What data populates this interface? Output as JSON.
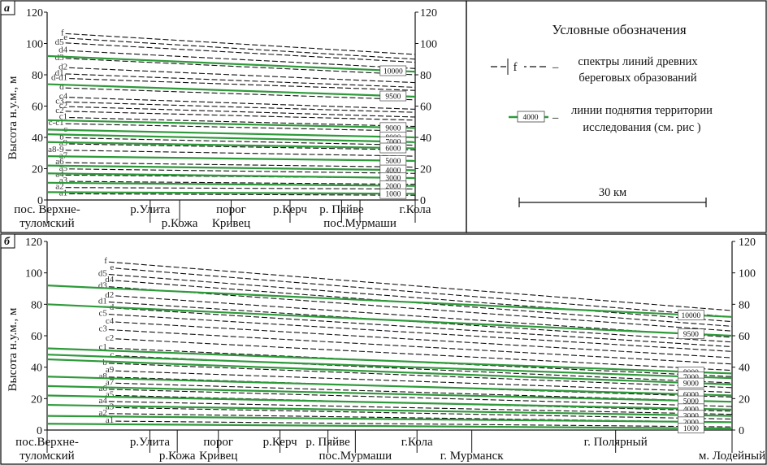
{
  "chart_data": [
    {
      "panel": "a",
      "type": "line",
      "ylabel": "Высота н.у.м., м",
      "ylim": [
        0,
        120
      ],
      "yticks": [
        0,
        20,
        40,
        60,
        80,
        100,
        120
      ],
      "locations": [
        {
          "l1": "пос. Верхне-",
          "l2": "туломский",
          "x": 0
        },
        {
          "l1": "р.Улита",
          "l2": "",
          "x": 28
        },
        {
          "l1": "",
          "l2": "р.Кожа",
          "x": 36
        },
        {
          "l1": "порог",
          "l2": "Кривец",
          "x": 50
        },
        {
          "l1": "р.Керч",
          "l2": "",
          "x": 66
        },
        {
          "l1": "р. Пяйве",
          "l2": "",
          "x": 80
        },
        {
          "l1": "",
          "l2": "пос.Мурмаши",
          "x": 85
        },
        {
          "l1": "г.Кола",
          "l2": "",
          "x": 100
        }
      ],
      "shoreline_spectra": [
        {
          "name": "f",
          "y0": 107,
          "y1": 93
        },
        {
          "name": "e",
          "y0": 104,
          "y1": 90
        },
        {
          "name": "d5",
          "y0": 101,
          "y1": 88
        },
        {
          "name": "d4",
          "y0": 96,
          "y1": 84
        },
        {
          "name": "d3",
          "y0": 91,
          "y1": 80
        },
        {
          "name": "d2",
          "y0": 85,
          "y1": 75
        },
        {
          "name": "d1",
          "y0": 81,
          "y1": 72
        },
        {
          "name": "d-d1",
          "y0": 78,
          "y1": 70
        },
        {
          "name": "d",
          "y0": 72,
          "y1": 64
        },
        {
          "name": "c4",
          "y0": 66,
          "y1": 58
        },
        {
          "name": "c3",
          "y0": 63,
          "y1": 56
        },
        {
          "name": "c2",
          "y0": 60,
          "y1": 53
        },
        {
          "name": "c2",
          "y0": 57,
          "y1": 51
        },
        {
          "name": "c1",
          "y0": 53,
          "y1": 47
        },
        {
          "name": "c-c1",
          "y0": 49,
          "y1": 44
        },
        {
          "name": "c",
          "y0": 45,
          "y1": 40
        },
        {
          "name": "b",
          "y0": 40,
          "y1": 35
        },
        {
          "name": "a9",
          "y0": 36,
          "y1": 32
        },
        {
          "name": "a8-9",
          "y0": 32,
          "y1": 28
        },
        {
          "name": "a7",
          "y0": 28,
          "y1": 25
        },
        {
          "name": "a6",
          "y0": 24,
          "y1": 21
        },
        {
          "name": "a5",
          "y0": 20,
          "y1": 17
        },
        {
          "name": "a4",
          "y0": 16,
          "y1": 14
        },
        {
          "name": "a3",
          "y0": 12,
          "y1": 10
        },
        {
          "name": "a2",
          "y0": 8,
          "y1": 7
        },
        {
          "name": "a1",
          "y0": 4,
          "y1": 3
        }
      ],
      "uplift_isolines": [
        {
          "name": "10000",
          "y0": 92,
          "y1": 82
        },
        {
          "name": "9500",
          "y0": 74,
          "y1": 66
        },
        {
          "name": "9000",
          "y0": 51,
          "y1": 46
        },
        {
          "name": "8000",
          "y0": 45,
          "y1": 40
        },
        {
          "name": "7000",
          "y0": 42,
          "y1": 37
        },
        {
          "name": "6000",
          "y0": 37,
          "y1": 33
        },
        {
          "name": "5000",
          "y0": 28,
          "y1": 25
        },
        {
          "name": "4000",
          "y0": 22,
          "y1": 19
        },
        {
          "name": "3000",
          "y0": 17,
          "y1": 14
        },
        {
          "name": "2000",
          "y0": 11,
          "y1": 9
        },
        {
          "name": "1000",
          "y0": 5,
          "y1": 4
        }
      ]
    },
    {
      "panel": "б",
      "type": "line",
      "ylabel": "Высота н.у.м., м",
      "ylim": [
        0,
        120
      ],
      "yticks": [
        0,
        20,
        40,
        60,
        80,
        100,
        120
      ],
      "locations": [
        {
          "l1": "пос.Верхне-",
          "l2": "туломский",
          "x": 0
        },
        {
          "l1": "р.Улита",
          "l2": "",
          "x": 15
        },
        {
          "l1": "",
          "l2": "р.Кожа",
          "x": 19
        },
        {
          "l1": "порог",
          "l2": "Кривец",
          "x": 25
        },
        {
          "l1": "р.Керч",
          "l2": "",
          "x": 34
        },
        {
          "l1": "р. Пяйве",
          "l2": "",
          "x": 41
        },
        {
          "l1": "",
          "l2": "пос.Мурмаши",
          "x": 45
        },
        {
          "l1": "г.Кола",
          "l2": "",
          "x": 54
        },
        {
          "l1": "",
          "l2": "г. Мурманск",
          "x": 62
        },
        {
          "l1": "г. Полярный",
          "l2": "",
          "x": 83
        },
        {
          "l1": "",
          "l2": "м. Лодейный",
          "x": 100
        }
      ],
      "shoreline_spectra": [
        {
          "name": "f",
          "y0": 110,
          "y1": 76
        },
        {
          "name": "e",
          "y0": 106,
          "y1": 72
        },
        {
          "name": "d5",
          "y0": 102,
          "y1": 69
        },
        {
          "name": "d4",
          "y0": 98,
          "y1": 66
        },
        {
          "name": "d3",
          "y0": 94,
          "y1": 63
        },
        {
          "name": "d2",
          "y0": 88,
          "y1": 59
        },
        {
          "name": "d1",
          "y0": 84,
          "y1": 56
        },
        {
          "name": "d",
          "y0": 80,
          "y1": 53
        },
        {
          "name": "c5",
          "y0": 76,
          "y1": 50
        },
        {
          "name": "c4",
          "y0": 71,
          "y1": 46
        },
        {
          "name": "c3",
          "y0": 66,
          "y1": 42
        },
        {
          "name": "c2",
          "y0": 60,
          "y1": 38
        },
        {
          "name": "c1",
          "y0": 54,
          "y1": 34
        },
        {
          "name": "c",
          "y0": 49,
          "y1": 30
        },
        {
          "name": "b",
          "y0": 44,
          "y1": 27
        },
        {
          "name": "a9",
          "y0": 39,
          "y1": 24
        },
        {
          "name": "a8",
          "y0": 35,
          "y1": 21
        },
        {
          "name": "a7",
          "y0": 31,
          "y1": 18
        },
        {
          "name": "a6",
          "y0": 27,
          "y1": 15
        },
        {
          "name": "a5",
          "y0": 23,
          "y1": 12
        },
        {
          "name": "a4",
          "y0": 19,
          "y1": 10
        },
        {
          "name": "a3",
          "y0": 15,
          "y1": 7
        },
        {
          "name": "a2",
          "y0": 11,
          "y1": 5
        },
        {
          "name": "a1",
          "y0": 6,
          "y1": 2
        }
      ],
      "uplift_isolines": [
        {
          "name": "10000",
          "y0": 92,
          "y1": 72
        },
        {
          "name": "9500",
          "y0": 80,
          "y1": 60
        },
        {
          "name": "8000",
          "y0": 52,
          "y1": 36
        },
        {
          "name": "7000",
          "y0": 48,
          "y1": 33
        },
        {
          "name": "9000",
          "y0": 45,
          "y1": 29
        },
        {
          "name": "6000",
          "y0": 34,
          "y1": 22
        },
        {
          "name": "5000",
          "y0": 28,
          "y1": 18
        },
        {
          "name": "4000",
          "y0": 22,
          "y1": 13
        },
        {
          "name": "3000",
          "y0": 16,
          "y1": 9
        },
        {
          "name": "2000",
          "y0": 9,
          "y1": 5
        },
        {
          "name": "1000",
          "y0": 4,
          "y1": 1
        }
      ]
    }
  ],
  "panels": {
    "a": "а",
    "b": "б"
  },
  "legend": {
    "title": "Условные обозначения",
    "spectra_symbol": "f",
    "spectra_l1": "спектры линий древних",
    "spectra_l2": "береговых образований",
    "uplift_symbol": "4000",
    "uplift_l1": "линии поднятия территории",
    "uplift_l2": "исследования (см. рис )",
    "scale_label": "30 км"
  },
  "colors": {
    "uplift": "#2e9a3a",
    "spectra": "#111111"
  }
}
